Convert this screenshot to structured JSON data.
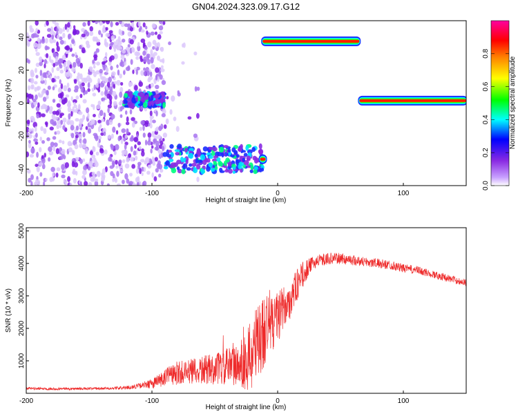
{
  "title": "GN04.2024.323.09.17.G12",
  "chart_data": [
    {
      "type": "heatmap",
      "xlabel": "Height of straight line (km)",
      "ylabel": "Frequency (Hz)",
      "xlim": [
        -200,
        150
      ],
      "ylim": [
        -50,
        50
      ],
      "xticks": [
        -200,
        -100,
        0,
        100
      ],
      "yticks": [
        -40,
        -20,
        0,
        20,
        40
      ],
      "colorbar": {
        "label": "Normalized spectral amplitude",
        "range": [
          0,
          1
        ],
        "ticks": [
          "0.0",
          "0.2",
          "0.4",
          "0.6",
          "0.8"
        ],
        "tick_values": [
          0.0,
          0.2,
          0.4,
          0.6,
          0.8
        ],
        "colormap": [
          "#ffffff",
          "#8a2be2",
          "#0000ff",
          "#00ffff",
          "#00ff00",
          "#ffff00",
          "#ff8000",
          "#ff0000",
          "#ff00a0"
        ]
      },
      "features": [
        {
          "kind": "noise",
          "x": [
            -200,
            -90
          ],
          "y": [
            -50,
            50
          ],
          "amplitude": 0.1
        },
        {
          "kind": "blob",
          "x": [
            -122,
            -90
          ],
          "y": [
            -2,
            6
          ],
          "amplitude": 0.35
        },
        {
          "kind": "blob",
          "x": [
            -90,
            -12
          ],
          "y": [
            -42,
            -26
          ],
          "amplitude": 0.3
        },
        {
          "kind": "line",
          "x": [
            -12,
            -14
          ],
          "y": [
            -34,
            -34
          ],
          "amplitude": 0.95
        },
        {
          "kind": "line",
          "x": [
            -12,
            65
          ],
          "y": [
            37.5,
            37.5
          ],
          "amplitude": 1.0
        },
        {
          "kind": "line",
          "x": [
            65,
            150
          ],
          "y": [
            1.5,
            1.5
          ],
          "amplitude": 1.0
        }
      ]
    },
    {
      "type": "line",
      "xlabel": "Height of straight line (km)",
      "ylabel": "SNR (10 * v/v)",
      "xlim": [
        -200,
        150
      ],
      "ylim": [
        0,
        5100
      ],
      "xticks": [
        -200,
        -100,
        0,
        100
      ],
      "yticks": [
        1000,
        2000,
        3000,
        4000,
        5000
      ],
      "color": "#ee2a2a",
      "series": [
        {
          "x": [
            -200,
            -180,
            -160,
            -140,
            -120,
            -110,
            -100,
            -90,
            -80,
            -70,
            -60,
            -50,
            -40,
            -30,
            -25,
            -20,
            -15,
            -10,
            -5,
            0,
            5,
            10,
            15,
            20,
            25,
            30,
            40,
            50,
            60,
            70,
            80,
            90,
            100,
            110,
            120,
            130,
            140,
            150
          ],
          "values": [
            150,
            140,
            140,
            145,
            170,
            230,
            300,
            450,
            600,
            650,
            700,
            750,
            800,
            900,
            1000,
            1200,
            1600,
            2000,
            2200,
            2350,
            2600,
            2900,
            3300,
            3650,
            3900,
            4050,
            4150,
            4150,
            4100,
            4050,
            4000,
            3950,
            3850,
            3800,
            3700,
            3600,
            3500,
            3400
          ],
          "noise": [
            40,
            40,
            40,
            40,
            50,
            80,
            150,
            300,
            400,
            400,
            450,
            500,
            600,
            700,
            900,
            1200,
            1300,
            1200,
            1000,
            800,
            700,
            600,
            500,
            400,
            250,
            200,
            180,
            170,
            160,
            150,
            150,
            140,
            130,
            130,
            120,
            120,
            110,
            110
          ]
        }
      ]
    }
  ]
}
